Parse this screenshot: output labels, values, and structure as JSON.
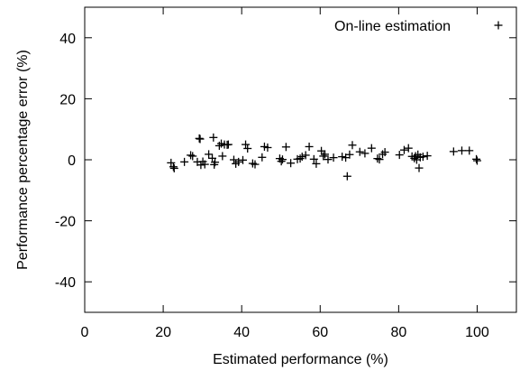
{
  "chart_data": {
    "type": "scatter",
    "title": "",
    "xlabel": "Estimated performance (%)",
    "ylabel": "Performance percentage error (%)",
    "xlim": [
      0,
      110
    ],
    "ylim": [
      -50,
      50
    ],
    "xticks": [
      0,
      20,
      40,
      60,
      80,
      100
    ],
    "yticks": [
      -40,
      -20,
      0,
      20,
      40
    ],
    "xtick_labels": [
      "0",
      "20",
      "40",
      "60",
      "80",
      "100"
    ],
    "ytick_labels": [
      "-40",
      "-20",
      "0",
      "20",
      "40"
    ],
    "grid": false,
    "legend_position": "top-right",
    "marker": "plus",
    "series": [
      {
        "name": "On-line estimation",
        "color": "#000000",
        "points": [
          [
            22.0,
            -1.0
          ],
          [
            22.6,
            -2.3
          ],
          [
            22.8,
            -2.8
          ],
          [
            25.4,
            -0.7
          ],
          [
            27.0,
            1.5
          ],
          [
            27.5,
            1.2
          ],
          [
            28.7,
            -0.7
          ],
          [
            29.2,
            7.0
          ],
          [
            29.4,
            6.8
          ],
          [
            29.6,
            -1.7
          ],
          [
            30.1,
            -0.6
          ],
          [
            30.6,
            -1.5
          ],
          [
            31.6,
            1.8
          ],
          [
            32.5,
            0.5
          ],
          [
            32.8,
            7.3
          ],
          [
            33.0,
            -1.6
          ],
          [
            33.2,
            -0.8
          ],
          [
            34.3,
            4.6
          ],
          [
            34.8,
            5.3
          ],
          [
            35.1,
            1.2
          ],
          [
            35.6,
            5.0
          ],
          [
            36.3,
            4.9
          ],
          [
            36.6,
            5.0
          ],
          [
            38.0,
            0.0
          ],
          [
            38.5,
            -1.3
          ],
          [
            39.2,
            -0.7
          ],
          [
            40.3,
            -0.1
          ],
          [
            41.0,
            5.0
          ],
          [
            41.5,
            3.7
          ],
          [
            42.8,
            -1.2
          ],
          [
            43.4,
            -1.5
          ],
          [
            45.2,
            0.8
          ],
          [
            45.8,
            4.3
          ],
          [
            46.6,
            4.0
          ],
          [
            49.7,
            0.4
          ],
          [
            50.1,
            -0.5
          ],
          [
            50.4,
            0.1
          ],
          [
            51.3,
            4.2
          ],
          [
            52.5,
            -1.1
          ],
          [
            54.2,
            0.2
          ],
          [
            54.9,
            0.4
          ],
          [
            55.4,
            1.0
          ],
          [
            56.3,
            1.5
          ],
          [
            57.2,
            4.3
          ],
          [
            58.4,
            0.2
          ],
          [
            59.0,
            -1.3
          ],
          [
            60.3,
            2.9
          ],
          [
            60.8,
            1.2
          ],
          [
            61.2,
            1.8
          ],
          [
            62.0,
            0.1
          ],
          [
            63.4,
            0.7
          ],
          [
            65.6,
            1.0
          ],
          [
            66.5,
            0.7
          ],
          [
            66.9,
            -5.4
          ],
          [
            67.5,
            1.7
          ],
          [
            68.2,
            4.8
          ],
          [
            70.1,
            2.6
          ],
          [
            71.4,
            2.1
          ],
          [
            73.1,
            3.8
          ],
          [
            74.6,
            0.4
          ],
          [
            75.1,
            0.1
          ],
          [
            75.9,
            1.8
          ],
          [
            76.5,
            2.5
          ],
          [
            80.2,
            1.6
          ],
          [
            81.4,
            3.2
          ],
          [
            82.5,
            3.8
          ],
          [
            83.4,
            1.1
          ],
          [
            84.0,
            0.5
          ],
          [
            84.3,
            1.2
          ],
          [
            84.6,
            0.0
          ],
          [
            84.9,
            1.7
          ],
          [
            85.2,
            -2.7
          ],
          [
            85.5,
            0.8
          ],
          [
            86.2,
            1.0
          ],
          [
            87.3,
            1.3
          ],
          [
            94.0,
            2.7
          ],
          [
            96.1,
            3.0
          ],
          [
            98.0,
            3.0
          ],
          [
            99.8,
            0.2
          ],
          [
            100.0,
            -0.3
          ]
        ]
      }
    ]
  }
}
